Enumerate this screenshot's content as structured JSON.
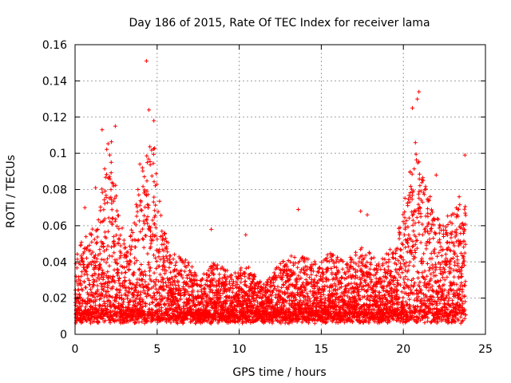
{
  "chart_data": {
    "type": "scatter",
    "title": "Day 186 of 2015, Rate Of TEC Index for receiver lama",
    "xlabel": "GPS time / hours",
    "ylabel": "ROTI / TECUs",
    "xlim": [
      0,
      25
    ],
    "ylim": [
      0,
      0.16
    ],
    "x_ticks": [
      0,
      5,
      10,
      15,
      20,
      25
    ],
    "x_tick_labels": [
      "0",
      "5",
      "10",
      "15",
      "20",
      "25"
    ],
    "y_ticks": [
      0,
      0.02,
      0.04,
      0.06,
      0.08,
      0.1,
      0.12,
      0.14,
      0.16
    ],
    "y_tick_labels": [
      "0",
      "0.02",
      "0.04",
      "0.06",
      "0.08",
      "0.1",
      "0.12",
      "0.14",
      "0.16"
    ],
    "grid": true,
    "marker": "+",
    "marker_color": "#ff0000",
    "series": [
      {
        "name": "ROTI",
        "envelope": [
          {
            "t": 0.0,
            "y": 0.042
          },
          {
            "t": 0.5,
            "y": 0.058
          },
          {
            "t": 1.0,
            "y": 0.06
          },
          {
            "t": 1.5,
            "y": 0.065
          },
          {
            "t": 1.8,
            "y": 0.1
          },
          {
            "t": 2.2,
            "y": 0.11
          },
          {
            "t": 2.6,
            "y": 0.07
          },
          {
            "t": 3.2,
            "y": 0.045
          },
          {
            "t": 3.8,
            "y": 0.08
          },
          {
            "t": 4.4,
            "y": 0.1
          },
          {
            "t": 4.8,
            "y": 0.11
          },
          {
            "t": 5.3,
            "y": 0.06
          },
          {
            "t": 6.0,
            "y": 0.045
          },
          {
            "t": 7.0,
            "y": 0.04
          },
          {
            "t": 7.5,
            "y": 0.03
          },
          {
            "t": 8.5,
            "y": 0.04
          },
          {
            "t": 9.5,
            "y": 0.035
          },
          {
            "t": 10.5,
            "y": 0.038
          },
          {
            "t": 11.5,
            "y": 0.028
          },
          {
            "t": 12.5,
            "y": 0.04
          },
          {
            "t": 13.5,
            "y": 0.045
          },
          {
            "t": 14.5,
            "y": 0.04
          },
          {
            "t": 15.5,
            "y": 0.045
          },
          {
            "t": 16.5,
            "y": 0.04
          },
          {
            "t": 17.5,
            "y": 0.05
          },
          {
            "t": 18.5,
            "y": 0.04
          },
          {
            "t": 19.5,
            "y": 0.05
          },
          {
            "t": 20.2,
            "y": 0.08
          },
          {
            "t": 20.8,
            "y": 0.11
          },
          {
            "t": 21.5,
            "y": 0.08
          },
          {
            "t": 22.3,
            "y": 0.06
          },
          {
            "t": 23.0,
            "y": 0.07
          },
          {
            "t": 23.8,
            "y": 0.08
          }
        ],
        "outliers": [
          {
            "t": 4.35,
            "y": 0.151
          },
          {
            "t": 4.5,
            "y": 0.124
          },
          {
            "t": 4.8,
            "y": 0.118
          },
          {
            "t": 1.65,
            "y": 0.113
          },
          {
            "t": 2.45,
            "y": 0.115
          },
          {
            "t": 20.95,
            "y": 0.134
          },
          {
            "t": 20.85,
            "y": 0.13
          },
          {
            "t": 20.55,
            "y": 0.125
          },
          {
            "t": 23.75,
            "y": 0.099
          },
          {
            "t": 13.6,
            "y": 0.069
          },
          {
            "t": 17.4,
            "y": 0.068
          },
          {
            "t": 17.8,
            "y": 0.066
          },
          {
            "t": 10.4,
            "y": 0.055
          },
          {
            "t": 8.3,
            "y": 0.058
          },
          {
            "t": 0.6,
            "y": 0.07
          },
          {
            "t": 1.25,
            "y": 0.081
          },
          {
            "t": 3.95,
            "y": 0.094
          },
          {
            "t": 4.1,
            "y": 0.092
          },
          {
            "t": 23.4,
            "y": 0.076
          },
          {
            "t": 22.0,
            "y": 0.088
          }
        ]
      }
    ]
  }
}
